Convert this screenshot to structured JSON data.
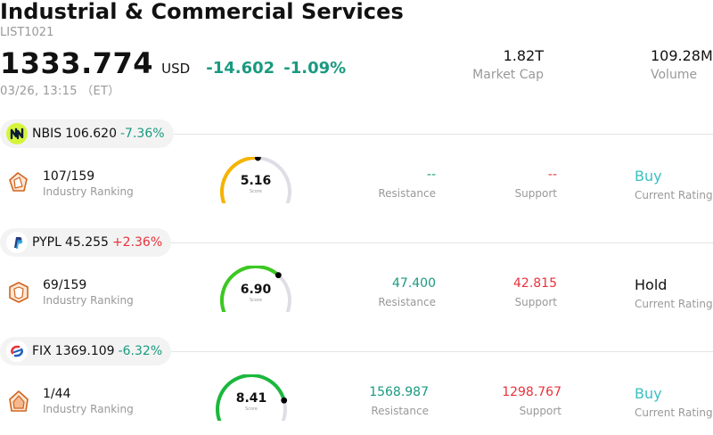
{
  "header": {
    "title": "Industrial & Commercial Services",
    "code": "LIST1021",
    "price": "1333.774",
    "currency": "USD",
    "change": "-14.602",
    "change_pct": "-1.09%",
    "timestamp": "03/26, 13:15 （ET）",
    "market_cap": {
      "value": "1.82T",
      "label": "Market Cap"
    },
    "volume": {
      "value": "109.28M",
      "label": "Volume"
    }
  },
  "colors": {
    "down": "#1a9a80",
    "up": "#e8323c",
    "buy": "#3bbfc4"
  },
  "stocks": [
    {
      "ticker": "NBIS",
      "price": "106.620",
      "change_pct": "-7.36%",
      "change_color": "#1a9a80",
      "logo_icon": "nbis-logo-icon",
      "ranking": "107/159",
      "ranking_label": "Industry Ranking",
      "score": "5.16",
      "score_label": "Score",
      "score_value": 5.16,
      "gauge_color": "#f5b400",
      "resistance": "--",
      "resistance_label": "Resistance",
      "resistance_color": "#1a9a80",
      "support": "--",
      "support_label": "Support",
      "support_color": "#e8323c",
      "rating": "Buy",
      "rating_label": "Current Rating",
      "rating_color": "#3bbfc4"
    },
    {
      "ticker": "PYPL",
      "price": "45.255",
      "change_pct": "+2.36%",
      "change_color": "#e8323c",
      "logo_icon": "paypal-logo-icon",
      "ranking": "69/159",
      "ranking_label": "Industry Ranking",
      "score": "6.90",
      "score_label": "Score",
      "score_value": 6.9,
      "gauge_color": "#3cc821",
      "resistance": "47.400",
      "resistance_label": "Resistance",
      "resistance_color": "#1a9a80",
      "support": "42.815",
      "support_label": "Support",
      "support_color": "#e8323c",
      "rating": "Hold",
      "rating_label": "Current Rating",
      "rating_color": "#111111"
    },
    {
      "ticker": "FIX",
      "price": "1369.109",
      "change_pct": "-6.32%",
      "change_color": "#1a9a80",
      "logo_icon": "fix-logo-icon",
      "ranking": "1/44",
      "ranking_label": "Industry Ranking",
      "score": "8.41",
      "score_label": "Score",
      "score_value": 8.41,
      "gauge_color": "#1ab83c",
      "resistance": "1568.987",
      "resistance_label": "Resistance",
      "resistance_color": "#1a9a80",
      "support": "1298.767",
      "support_label": "Support",
      "support_color": "#e8323c",
      "rating": "Buy",
      "rating_label": "Current Rating",
      "rating_color": "#3bbfc4"
    }
  ]
}
